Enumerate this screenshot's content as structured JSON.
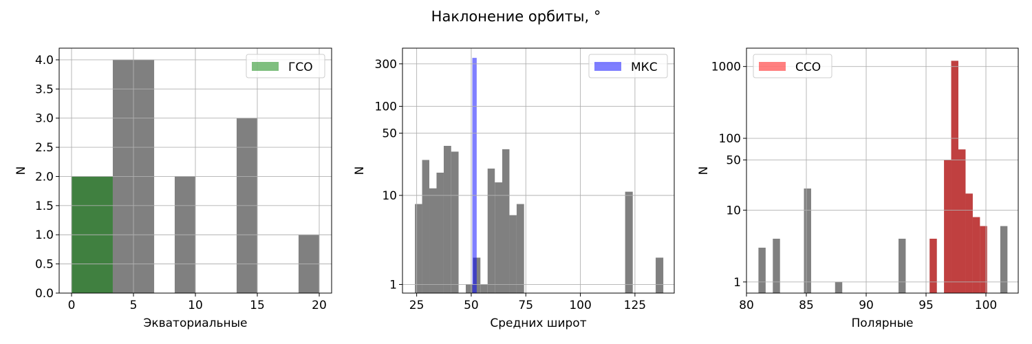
{
  "figure": {
    "suptitle": "Наклонение орбиты, °"
  },
  "colors": {
    "background_bar": "#808080",
    "gso": "#008000",
    "iss": "#0000ff",
    "sso": "#ff0000",
    "grid": "#b0b0b0"
  },
  "chart_data": [
    {
      "type": "bar",
      "subtype": "histogram",
      "xlabel": "Экваториальные",
      "ylabel": "N",
      "yscale": "linear",
      "xlim": [
        -1,
        21
      ],
      "ylim": [
        0,
        4.2
      ],
      "xticks": [
        0,
        5,
        10,
        15,
        20
      ],
      "xtick_labels": [
        "0",
        "5",
        "10",
        "15",
        "20"
      ],
      "yticks": [
        0,
        0.5,
        1,
        1.5,
        2,
        2.5,
        3,
        3.5,
        4
      ],
      "ytick_labels": [
        "0.0",
        "0.5",
        "1.0",
        "1.5",
        "2.0",
        "2.5",
        "3.0",
        "3.5",
        "4.0"
      ],
      "grid": true,
      "legend_position": "upper-right",
      "series": [
        {
          "name": "",
          "color": "#808080",
          "bins": [
            {
              "x0": 0,
              "x1": 3.33,
              "count": 2
            },
            {
              "x0": 3.33,
              "x1": 6.67,
              "count": 4
            },
            {
              "x0": 8.33,
              "x1": 10,
              "count": 2
            },
            {
              "x0": 13.33,
              "x1": 15,
              "count": 3
            },
            {
              "x0": 18.33,
              "x1": 20,
              "count": 1
            }
          ]
        },
        {
          "name": "ГСО",
          "color": "#008000",
          "opacity": 0.5,
          "bins": [
            {
              "x0": 0,
              "x1": 3.33,
              "count": 2
            }
          ]
        }
      ]
    },
    {
      "type": "bar",
      "subtype": "histogram",
      "xlabel": "Средних широт",
      "ylabel": "N",
      "yscale": "log",
      "xlim": [
        18.5,
        143
      ],
      "ylim": [
        0.8,
        450
      ],
      "xticks": [
        25,
        50,
        75,
        100,
        125
      ],
      "xtick_labels": [
        "25",
        "50",
        "75",
        "100",
        "125"
      ],
      "yticks": [
        1,
        10,
        50,
        100,
        300
      ],
      "ytick_labels": [
        "1",
        "10",
        "50",
        "100",
        "300"
      ],
      "grid": true,
      "legend_position": "upper-right",
      "series": [
        {
          "name": "",
          "color": "#808080",
          "bins": [
            {
              "x0": 24.2,
              "x1": 27.5,
              "count": 8
            },
            {
              "x0": 27.5,
              "x1": 30.8,
              "count": 25
            },
            {
              "x0": 30.8,
              "x1": 34.1,
              "count": 12
            },
            {
              "x0": 34.1,
              "x1": 37.4,
              "count": 18
            },
            {
              "x0": 37.4,
              "x1": 40.8,
              "count": 36
            },
            {
              "x0": 40.8,
              "x1": 44.2,
              "count": 31
            },
            {
              "x0": 47.5,
              "x1": 50.8,
              "count": 1
            },
            {
              "x0": 50.8,
              "x1": 54.2,
              "count": 2
            },
            {
              "x0": 54.2,
              "x1": 57.5,
              "count": 1
            },
            {
              "x0": 57.5,
              "x1": 60.8,
              "count": 20
            },
            {
              "x0": 60.8,
              "x1": 64.2,
              "count": 14
            },
            {
              "x0": 64.2,
              "x1": 67.5,
              "count": 33
            },
            {
              "x0": 67.5,
              "x1": 70.8,
              "count": 6
            },
            {
              "x0": 70.8,
              "x1": 74.2,
              "count": 8
            },
            {
              "x0": 120.5,
              "x1": 124,
              "count": 11
            },
            {
              "x0": 134.5,
              "x1": 138,
              "count": 2
            }
          ]
        },
        {
          "name": "МКС",
          "color": "#0000ff",
          "opacity": 0.5,
          "bins": [
            {
              "x0": 50.5,
              "x1": 52.5,
              "count": 350
            }
          ]
        }
      ]
    },
    {
      "type": "bar",
      "subtype": "histogram",
      "xlabel": "Полярные",
      "ylabel": "N",
      "yscale": "log",
      "xlim": [
        80,
        102.7
      ],
      "ylim": [
        0.7,
        1800
      ],
      "xticks": [
        80,
        85,
        90,
        95,
        100
      ],
      "xtick_labels": [
        "80",
        "85",
        "90",
        "95",
        "100"
      ],
      "yticks": [
        1,
        10,
        50,
        100,
        1000
      ],
      "ytick_labels": [
        "1",
        "10",
        "50",
        "100",
        "1000"
      ],
      "grid": true,
      "legend_position": "upper-left",
      "series": [
        {
          "name": "",
          "color": "#808080",
          "bins": [
            {
              "x0": 81,
              "x1": 81.6,
              "count": 3
            },
            {
              "x0": 82.2,
              "x1": 82.8,
              "count": 4
            },
            {
              "x0": 84.8,
              "x1": 85.4,
              "count": 20
            },
            {
              "x0": 87.4,
              "x1": 88,
              "count": 1
            },
            {
              "x0": 92.7,
              "x1": 93.3,
              "count": 4
            },
            {
              "x0": 95.3,
              "x1": 95.9,
              "count": 4
            },
            {
              "x0": 96.5,
              "x1": 97.1,
              "count": 50
            },
            {
              "x0": 97.1,
              "x1": 97.7,
              "count": 1200
            },
            {
              "x0": 97.7,
              "x1": 98.3,
              "count": 70
            },
            {
              "x0": 98.3,
              "x1": 98.9,
              "count": 17
            },
            {
              "x0": 98.9,
              "x1": 99.5,
              "count": 8
            },
            {
              "x0": 99.5,
              "x1": 100.1,
              "count": 6
            },
            {
              "x0": 101.2,
              "x1": 101.8,
              "count": 6
            }
          ]
        },
        {
          "name": "ССО",
          "color": "#ff0000",
          "opacity": 0.5,
          "bins": [
            {
              "x0": 95.3,
              "x1": 95.9,
              "count": 4
            },
            {
              "x0": 96.5,
              "x1": 97.1,
              "count": 50
            },
            {
              "x0": 97.1,
              "x1": 97.7,
              "count": 1200
            },
            {
              "x0": 97.7,
              "x1": 98.3,
              "count": 70
            },
            {
              "x0": 98.3,
              "x1": 98.9,
              "count": 17
            },
            {
              "x0": 98.9,
              "x1": 99.5,
              "count": 8
            },
            {
              "x0": 99.5,
              "x1": 100.1,
              "count": 6
            }
          ]
        }
      ]
    }
  ]
}
